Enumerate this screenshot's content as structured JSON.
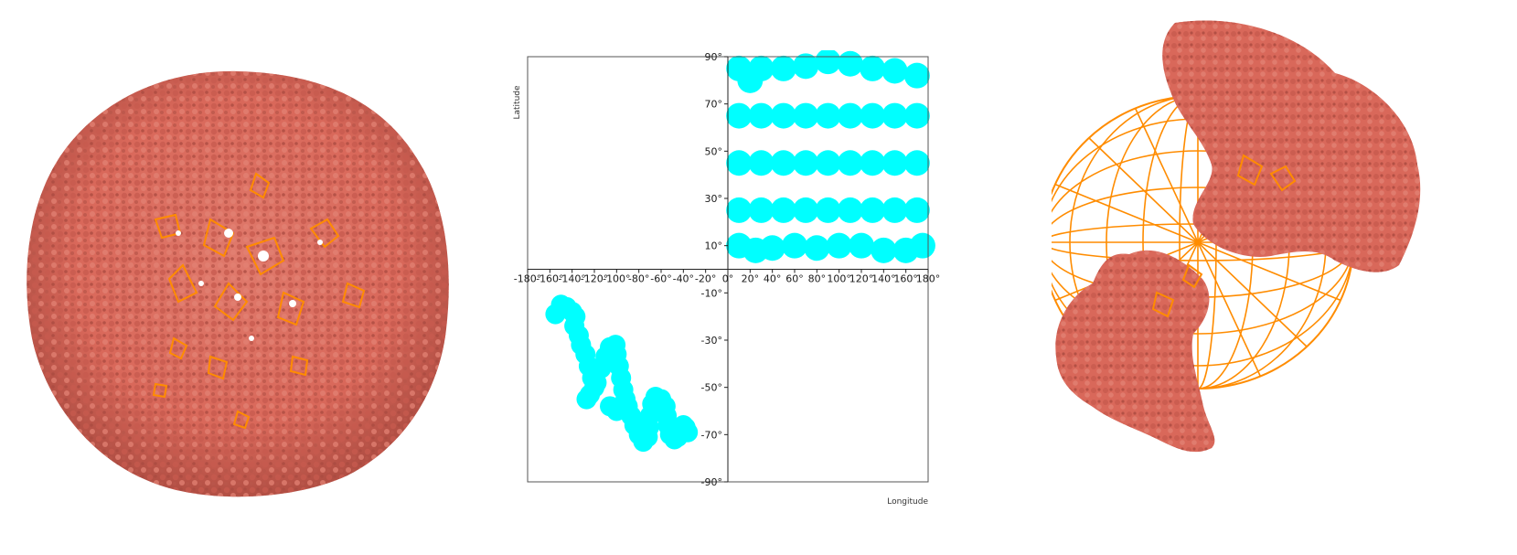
{
  "colors": {
    "protein": "#d9685a",
    "protein_dark": "#b24f44",
    "lattice": "#ff8c00",
    "points": "#00ffff"
  },
  "left_view": {
    "icon": "capsid-surface-render"
  },
  "right_view": {
    "icon": "capsid-partial-with-wireframe-sphere"
  },
  "chart_data": {
    "type": "scatter",
    "title": "",
    "xlabel": "Longitude",
    "ylabel": "Latitude",
    "xlim": [
      -180,
      180
    ],
    "ylim": [
      -90,
      90
    ],
    "grid": false,
    "x_ticks": [
      -180,
      -160,
      -140,
      -120,
      -100,
      -80,
      -60,
      -40,
      -20,
      0,
      20,
      40,
      60,
      80,
      100,
      120,
      140,
      160,
      180
    ],
    "y_ticks": [
      -90,
      -70,
      -50,
      -30,
      -10,
      10,
      30,
      50,
      70,
      90
    ],
    "x_tick_labels": [
      "-180°",
      "-160°",
      "-140°",
      "-120°",
      "-100°",
      "-80°",
      "-60°",
      "-40°",
      "-20°",
      "0°",
      "20°",
      "40°",
      "60°",
      "80°",
      "100°",
      "120°",
      "140°",
      "160°",
      "180°"
    ],
    "y_tick_labels": [
      "-90°",
      "-70°",
      "-50°",
      "-30°",
      "-10°",
      "10°",
      "30°",
      "50°",
      "70°",
      "90°"
    ],
    "series": [
      {
        "color": "#00ffff",
        "points": [
          [
            -150,
            -15
          ],
          [
            -155,
            -19
          ],
          [
            -145,
            -16
          ],
          [
            -140,
            -18
          ],
          [
            -137,
            -20
          ],
          [
            -138,
            -24
          ],
          [
            -134,
            -28
          ],
          [
            -132,
            -32
          ],
          [
            -128,
            -36
          ],
          [
            -125,
            -41
          ],
          [
            -122,
            -46
          ],
          [
            -120,
            -50
          ],
          [
            -124,
            -53
          ],
          [
            -127,
            -55
          ],
          [
            -118,
            -48
          ],
          [
            -114,
            -42
          ],
          [
            -110,
            -37
          ],
          [
            -106,
            -33
          ],
          [
            -101,
            -32
          ],
          [
            -100,
            -36
          ],
          [
            -98,
            -41
          ],
          [
            -96,
            -46
          ],
          [
            -94,
            -51
          ],
          [
            -92,
            -55
          ],
          [
            -95,
            -59
          ],
          [
            -100,
            -60
          ],
          [
            -106,
            -58
          ],
          [
            -90,
            -58
          ],
          [
            -87,
            -62
          ],
          [
            -84,
            -66
          ],
          [
            -80,
            -70
          ],
          [
            -76,
            -73
          ],
          [
            -72,
            -71
          ],
          [
            -71,
            -67
          ],
          [
            -70,
            -62
          ],
          [
            -68,
            -57
          ],
          [
            -65,
            -54
          ],
          [
            -60,
            -55
          ],
          [
            -56,
            -58
          ],
          [
            -55,
            -62
          ],
          [
            -54,
            -66
          ],
          [
            -52,
            -70
          ],
          [
            -48,
            -72
          ],
          [
            -45,
            -71
          ],
          [
            -43,
            -68
          ],
          [
            -40,
            -66
          ],
          [
            -38,
            -67
          ],
          [
            -36,
            -69
          ],
          [
            10,
            85
          ],
          [
            20,
            80
          ],
          [
            30,
            85
          ],
          [
            50,
            85
          ],
          [
            70,
            86
          ],
          [
            90,
            88
          ],
          [
            110,
            87
          ],
          [
            130,
            85
          ],
          [
            150,
            84
          ],
          [
            170,
            82
          ],
          [
            10,
            65
          ],
          [
            30,
            65
          ],
          [
            50,
            65
          ],
          [
            70,
            65
          ],
          [
            90,
            65
          ],
          [
            110,
            65
          ],
          [
            130,
            65
          ],
          [
            150,
            65
          ],
          [
            170,
            65
          ],
          [
            10,
            45
          ],
          [
            30,
            45
          ],
          [
            50,
            45
          ],
          [
            70,
            45
          ],
          [
            90,
            45
          ],
          [
            110,
            45
          ],
          [
            130,
            45
          ],
          [
            150,
            45
          ],
          [
            170,
            45
          ],
          [
            10,
            25
          ],
          [
            30,
            25
          ],
          [
            50,
            25
          ],
          [
            70,
            25
          ],
          [
            90,
            25
          ],
          [
            110,
            25
          ],
          [
            130,
            25
          ],
          [
            150,
            25
          ],
          [
            170,
            25
          ],
          [
            10,
            10
          ],
          [
            25,
            8
          ],
          [
            40,
            9
          ],
          [
            60,
            10
          ],
          [
            80,
            9
          ],
          [
            100,
            10
          ],
          [
            120,
            10
          ],
          [
            140,
            8
          ],
          [
            160,
            8
          ],
          [
            175,
            10
          ]
        ]
      }
    ]
  }
}
